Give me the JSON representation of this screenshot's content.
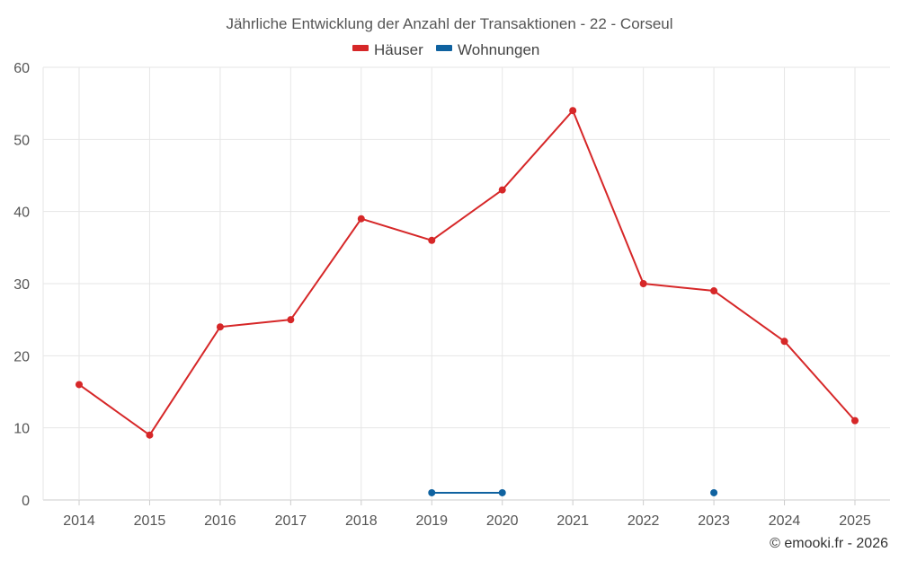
{
  "chart_data": {
    "type": "line",
    "title": "Jährliche Entwicklung der Anzahl der Transaktionen - 22 - Corseul",
    "categories": [
      "2014",
      "2015",
      "2016",
      "2017",
      "2018",
      "2019",
      "2020",
      "2021",
      "2022",
      "2023",
      "2024",
      "2025"
    ],
    "series": [
      {
        "name": "Häuser",
        "color": "#d62728",
        "values": [
          16,
          9,
          24,
          25,
          39,
          36,
          43,
          54,
          30,
          29,
          22,
          11
        ]
      },
      {
        "name": "Wohnungen",
        "color": "#0f62a0",
        "values": [
          null,
          null,
          null,
          null,
          null,
          1,
          1,
          null,
          null,
          1,
          null,
          null
        ]
      }
    ],
    "ylim": [
      0,
      60
    ],
    "yticks": [
      0,
      10,
      20,
      30,
      40,
      50,
      60
    ],
    "xlabel": "",
    "ylabel": "",
    "grid": true,
    "legend_position": "top-center"
  },
  "credit": "© emooki.fr - 2026"
}
